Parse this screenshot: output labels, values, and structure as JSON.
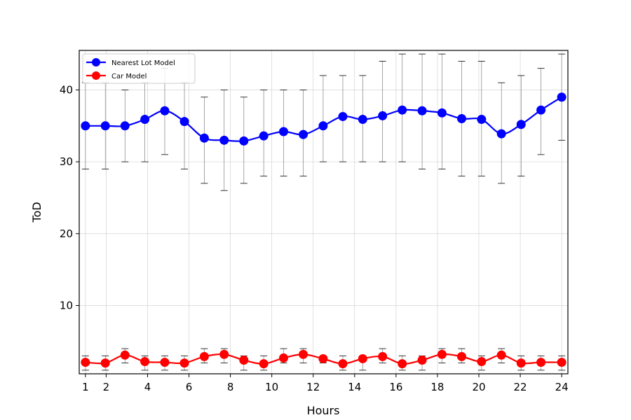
{
  "chart_data": {
    "type": "line",
    "title": "",
    "xlabel": "Hours",
    "ylabel": "ToD",
    "xlim": [
      0.7,
      24.3
    ],
    "ylim": [
      0.5,
      45.5
    ],
    "x_ticks": [
      1,
      2,
      4,
      6,
      8,
      10,
      12,
      14,
      16,
      18,
      20,
      22,
      24
    ],
    "y_ticks": [
      10,
      20,
      30,
      40
    ],
    "grid": true,
    "legend_position": "top-left",
    "x": [
      1,
      1.96,
      2.91,
      3.87,
      4.83,
      5.78,
      6.74,
      7.7,
      8.65,
      9.61,
      10.57,
      11.52,
      12.48,
      13.43,
      14.39,
      15.35,
      16.3,
      17.26,
      18.22,
      19.17,
      20.13,
      21.09,
      22.04,
      23,
      24
    ],
    "series": [
      {
        "name": "Nearest Lot Model",
        "color": "#0000ff",
        "values": [
          35.0,
          35.0,
          35.0,
          35.9,
          37.1,
          35.6,
          33.3,
          33.0,
          32.9,
          33.6,
          34.2,
          33.8,
          35.0,
          36.3,
          35.9,
          36.4,
          37.2,
          37.1,
          36.8,
          36.0,
          35.9,
          33.9,
          35.2,
          37.2,
          39.0
        ],
        "err_low": [
          29,
          29,
          30,
          30,
          31,
          29,
          27,
          26,
          27,
          28,
          28,
          28,
          30,
          30,
          30,
          30,
          30,
          29,
          29,
          28,
          28,
          27,
          28,
          31,
          33
        ],
        "err_high": [
          41,
          41,
          40,
          41,
          43,
          41,
          39,
          40,
          39,
          40,
          40,
          40,
          42,
          42,
          42,
          44,
          45,
          45,
          45,
          44,
          44,
          41,
          42,
          43,
          45
        ]
      },
      {
        "name": "Car Model",
        "color": "#ff0000",
        "values": [
          2.1,
          2.0,
          3.1,
          2.2,
          2.1,
          2.0,
          2.9,
          3.2,
          2.4,
          1.9,
          2.7,
          3.2,
          2.6,
          1.9,
          2.6,
          2.9,
          1.9,
          2.4,
          3.2,
          2.9,
          2.2,
          3.1,
          2.0,
          2.1,
          2.1
        ],
        "err_low": [
          1,
          1,
          2,
          1,
          1,
          1,
          2,
          2,
          1,
          1,
          2,
          2,
          2,
          1,
          1,
          2,
          1,
          1,
          2,
          2,
          1,
          2,
          1,
          1,
          1
        ],
        "err_high": [
          3,
          3,
          4,
          3,
          3,
          3,
          4,
          4,
          3,
          3,
          4,
          4,
          3,
          3,
          3,
          4,
          3,
          3,
          4,
          4,
          3,
          4,
          3,
          3,
          3
        ]
      }
    ]
  }
}
